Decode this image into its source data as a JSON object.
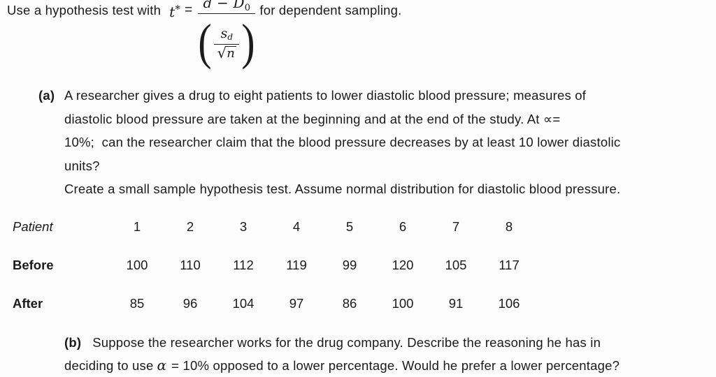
{
  "intro": {
    "prefix": "Use a hypothesis test with",
    "t_var": "t",
    "t_sup": "*",
    "equals": "=",
    "formula": {
      "numerator_main": "d − D",
      "numerator_sub": "0",
      "paren_open": "(",
      "paren_close": ")",
      "s_var": "s",
      "s_sub": "d",
      "radical": "√",
      "radicand": "n"
    },
    "suffix": "for dependent sampling."
  },
  "part_a": {
    "label": "(a)",
    "lines": [
      "A researcher gives a drug to eight patients to lower diastolic blood pressure; measures of",
      "diastolic blood pressure are taken at the beginning and at the end of the study. At ∝=",
      "10%;  can the researcher claim that the blood pressure decreases by at least 10 lower diastolic",
      "units?",
      "Create a small sample hypothesis test. Assume normal distribution for diastolic blood pressure."
    ]
  },
  "table": {
    "rows": [
      {
        "label": "Patient",
        "values": [
          "1",
          "2",
          "3",
          "4",
          "5",
          "6",
          "7",
          "8"
        ]
      },
      {
        "label": "Before",
        "values": [
          "100",
          "110",
          "112",
          "119",
          "99",
          "120",
          "105",
          "117"
        ]
      },
      {
        "label": "After",
        "values": [
          "85",
          "96",
          "104",
          "97",
          "86",
          "100",
          "91",
          "106"
        ]
      }
    ]
  },
  "part_b": {
    "label": "(b)",
    "line1": "Suppose the researcher works for the drug company. Describe the reasoning he has in",
    "line2_pre": "deciding to use",
    "alpha": "α",
    "line2_post": "= 10% opposed to a lower percentage. Would he prefer a lower percentage?"
  }
}
